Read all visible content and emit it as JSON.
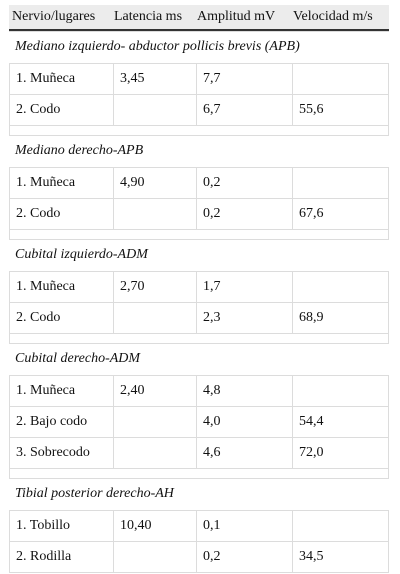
{
  "table": {
    "headers": [
      "Nervio/lugares",
      "Latencia ms",
      "Amplitud mV",
      "Velocidad m/s"
    ],
    "sections": [
      {
        "title": "Mediano izquierdo- abductor pollicis brevis (APB)",
        "rows": [
          [
            "1. Muñeca",
            "3,45",
            "7,7",
            ""
          ],
          [
            "2. Codo",
            "",
            "6,7",
            "55,6"
          ]
        ]
      },
      {
        "title": "Mediano derecho-APB",
        "rows": [
          [
            "1. Muñeca",
            "4,90",
            "0,2",
            ""
          ],
          [
            "2. Codo",
            "",
            "0,2",
            "67,6"
          ]
        ]
      },
      {
        "title": "Cubital izquierdo-ADM",
        "rows": [
          [
            "1. Muñeca",
            "2,70",
            "1,7",
            ""
          ],
          [
            "2. Codo",
            "",
            "2,3",
            "68,9"
          ]
        ]
      },
      {
        "title": "Cubital derecho-ADM",
        "rows": [
          [
            "1. Muñeca",
            "2,40",
            "4,8",
            ""
          ],
          [
            "2. Bajo codo",
            "",
            "4,0",
            "54,4"
          ],
          [
            "3. Sobrecodo",
            "",
            "4,6",
            "72,0"
          ]
        ]
      },
      {
        "title": "Tibial posterior derecho-AH",
        "rows": [
          [
            "1. Tobillo",
            "10,40",
            "0,1",
            ""
          ],
          [
            "2. Rodilla",
            "",
            "0,2",
            "34,5"
          ]
        ]
      }
    ]
  }
}
